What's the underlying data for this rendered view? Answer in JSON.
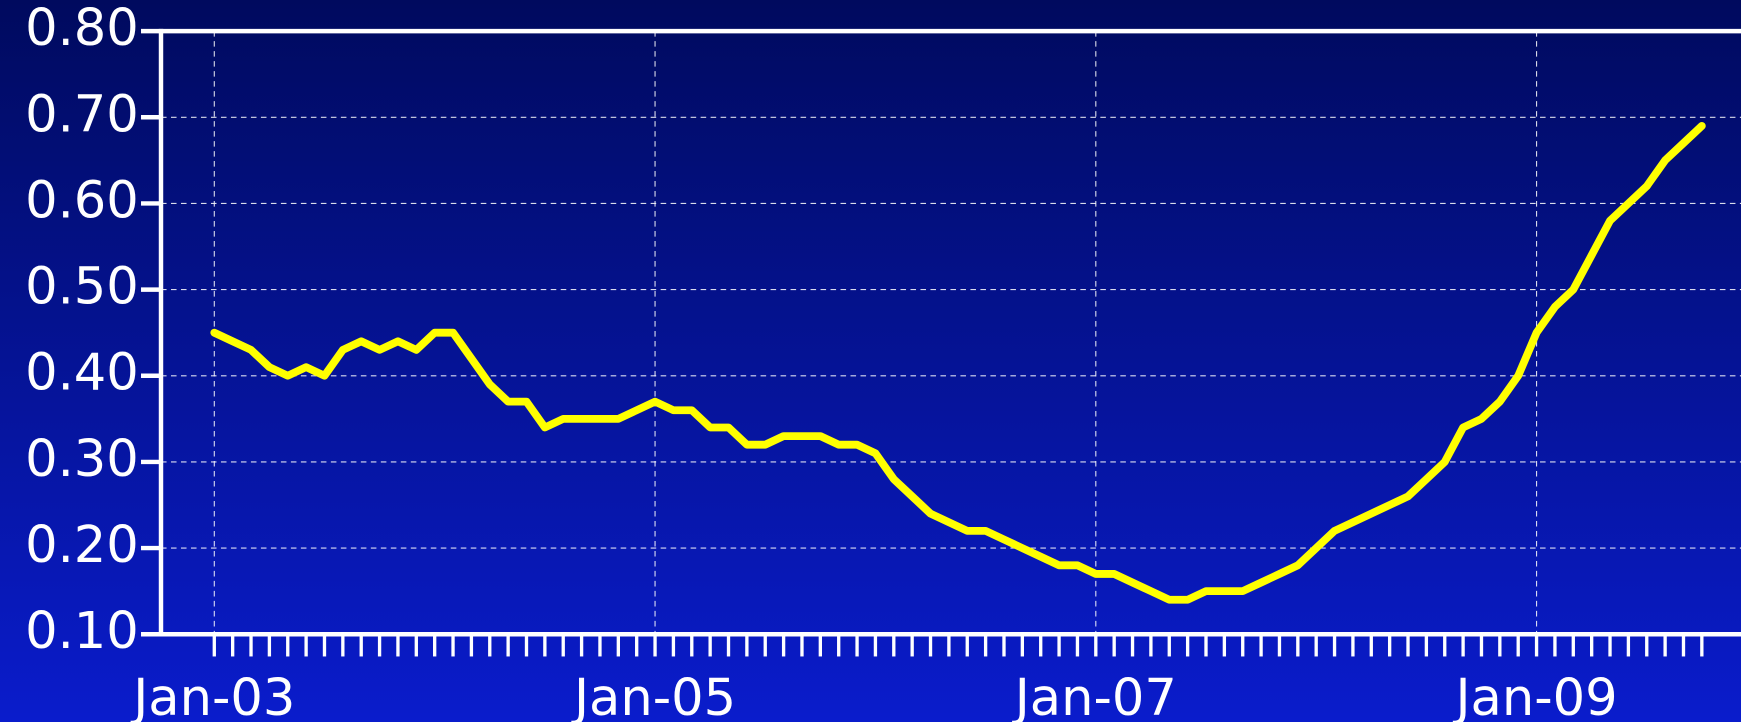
{
  "chart_data": {
    "type": "line",
    "categories": [
      "Jan-03",
      null,
      null,
      null,
      null,
      null,
      null,
      null,
      null,
      null,
      null,
      null,
      null,
      null,
      null,
      null,
      null,
      null,
      null,
      null,
      null,
      null,
      null,
      null,
      "Jan-05",
      null,
      null,
      null,
      null,
      null,
      null,
      null,
      null,
      null,
      null,
      null,
      null,
      null,
      null,
      null,
      null,
      null,
      null,
      null,
      null,
      null,
      null,
      null,
      "Jan-07",
      null,
      null,
      null,
      null,
      null,
      null,
      null,
      null,
      null,
      null,
      null,
      null,
      null,
      null,
      null,
      null,
      null,
      null,
      null,
      null,
      null,
      null,
      null,
      "Jan-09",
      null,
      null,
      null,
      null,
      null,
      null,
      null,
      null,
      null
    ],
    "values": [
      0.45,
      0.44,
      0.43,
      0.41,
      0.4,
      0.41,
      0.4,
      0.43,
      0.44,
      0.43,
      0.44,
      0.43,
      0.45,
      0.45,
      0.42,
      0.39,
      0.37,
      0.37,
      0.34,
      0.35,
      0.35,
      0.35,
      0.35,
      0.36,
      0.37,
      0.36,
      0.36,
      0.34,
      0.34,
      0.32,
      0.32,
      0.33,
      0.33,
      0.33,
      0.32,
      0.32,
      0.31,
      0.28,
      0.26,
      0.24,
      0.23,
      0.22,
      0.22,
      0.21,
      0.2,
      0.19,
      0.18,
      0.18,
      0.17,
      0.17,
      0.16,
      0.15,
      0.14,
      0.14,
      0.15,
      0.15,
      0.15,
      0.16,
      0.17,
      0.18,
      0.2,
      0.22,
      0.23,
      0.24,
      0.25,
      0.26,
      0.28,
      0.3,
      0.34,
      0.35,
      0.37,
      0.4,
      0.45,
      0.48,
      0.5,
      0.54,
      0.58,
      0.6,
      0.62,
      0.65,
      0.67,
      0.69
    ],
    "color": "#ffff00",
    "ylim": [
      0.1,
      0.8
    ],
    "yticks": [
      {
        "value": 0.1,
        "label": "0.10"
      },
      {
        "value": 0.2,
        "label": "0.20"
      },
      {
        "value": 0.3,
        "label": "0.30"
      },
      {
        "value": 0.4,
        "label": "0.40"
      },
      {
        "value": 0.5,
        "label": "0.50"
      },
      {
        "value": 0.6,
        "label": "0.60"
      },
      {
        "value": 0.7,
        "label": "0.70"
      },
      {
        "value": 0.8,
        "label": "0.80"
      }
    ],
    "grid": true
  }
}
